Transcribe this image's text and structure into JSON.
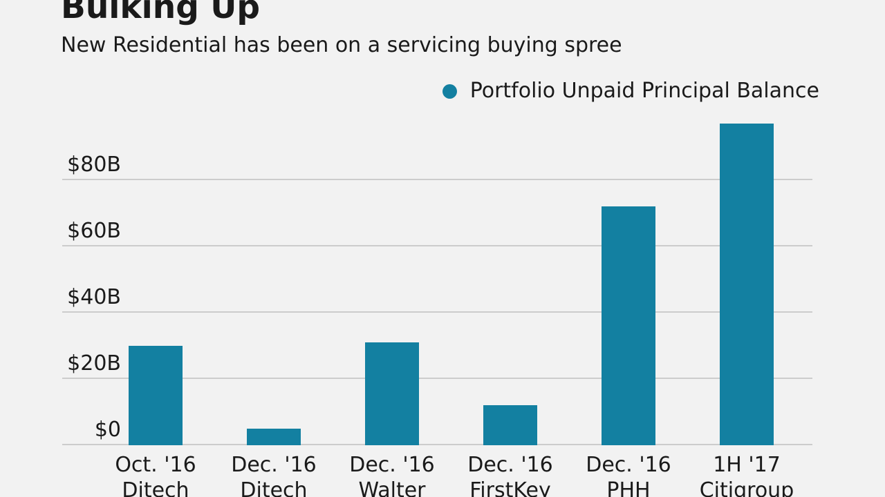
{
  "chart_data": {
    "type": "bar",
    "title": "Bulking Up",
    "subtitle": "New Residential has been on a servicing buying spree",
    "legend": {
      "label": "Portfolio Unpaid Principal Balance",
      "color": "#1380a1"
    },
    "legend_position": "top-right",
    "grid": "horizontal",
    "background": "#f2f2f2",
    "bar_color": "#1380a1",
    "gridline_color": "#cccccc",
    "value_unit": "$ billions (UPB)",
    "ylim": [
      0,
      100
    ],
    "y_ticks": [
      {
        "value": 0,
        "label": "$0"
      },
      {
        "value": 20,
        "label": "$20B"
      },
      {
        "value": 40,
        "label": "$40B"
      },
      {
        "value": 60,
        "label": "$60B"
      },
      {
        "value": 80,
        "label": "$80B"
      }
    ],
    "points": [
      {
        "period": "Oct. '16",
        "company": "Ditech",
        "value": 30
      },
      {
        "period": "Dec. '16",
        "company": "Ditech",
        "value": 5
      },
      {
        "period": "Dec. '16",
        "company": "Walter",
        "value": 31
      },
      {
        "period": "Dec. '16",
        "company": "FirstKey",
        "value": 12
      },
      {
        "period": "Dec. '16",
        "company": "PHH",
        "value": 72
      },
      {
        "period": "1H '17",
        "company": "Citigroup",
        "value": 97
      }
    ]
  }
}
